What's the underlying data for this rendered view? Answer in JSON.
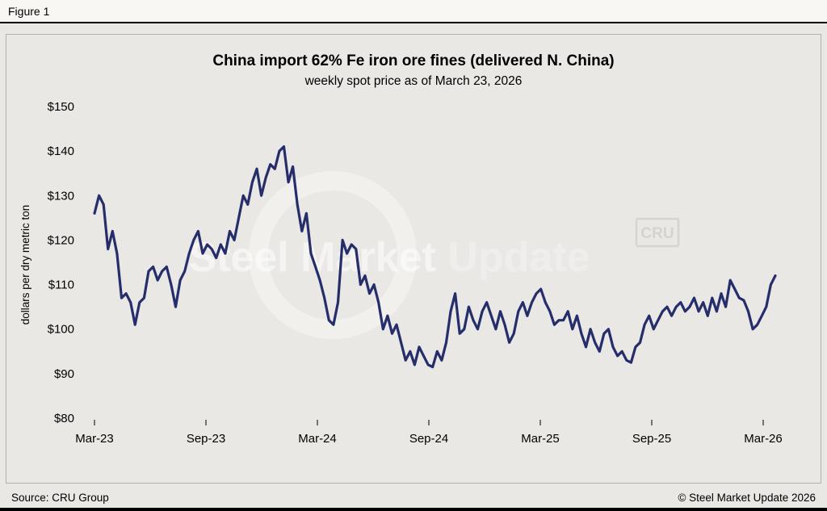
{
  "figure_label": "Figure 1",
  "chart_data": {
    "type": "line",
    "title": "China import 62% Fe iron ore fines (delivered N. China)",
    "subtitle": "weekly spot price as of March 23, 2026",
    "ylabel": "dollars per dry metric ton",
    "xlabel": "",
    "ylim": [
      80,
      150
    ],
    "grid": false,
    "legend": "none",
    "y_tick_values": [
      80,
      90,
      100,
      110,
      120,
      130,
      140,
      150
    ],
    "y_tick_labels": [
      "$80",
      "$90",
      "$100",
      "$110",
      "$120",
      "$130",
      "$140",
      "$150"
    ],
    "x_ticks": [
      "Mar-23",
      "Sep-23",
      "Mar-24",
      "Sep-24",
      "Mar-25",
      "Sep-25",
      "Mar-26"
    ],
    "x_unit": "weeks",
    "series": [
      {
        "name": "China import 62% Fe iron ore fines spot price",
        "color": "#262d6b",
        "values": [
          126,
          130,
          128,
          118,
          122,
          117,
          107,
          108,
          106,
          101,
          106,
          107,
          113,
          114,
          111,
          113,
          114,
          110,
          105,
          111,
          113,
          117,
          120,
          122,
          117,
          119,
          118,
          116,
          119,
          117,
          122,
          120,
          125,
          130,
          128,
          133,
          136,
          130,
          134,
          137,
          136,
          140,
          141,
          133,
          136.5,
          128,
          122,
          126,
          117,
          114,
          111,
          107,
          102,
          101,
          106,
          120,
          117,
          119,
          118,
          110,
          112,
          108,
          110,
          106,
          100,
          103,
          99,
          101,
          97,
          93,
          95,
          92,
          96,
          94,
          92,
          91.5,
          95,
          93,
          97,
          104,
          108,
          99,
          100,
          105,
          102,
          100,
          104,
          106,
          103,
          100,
          104,
          101,
          97,
          99,
          104,
          106,
          103,
          106,
          108,
          109,
          106,
          104,
          101,
          102,
          102,
          104,
          100,
          103,
          99,
          96,
          100,
          97,
          95,
          99,
          100,
          96,
          94,
          95,
          93,
          92.5,
          96,
          97,
          101,
          103,
          100,
          102,
          104,
          105,
          103,
          105,
          106,
          104,
          105,
          107,
          104,
          106,
          103,
          107,
          104,
          108,
          105,
          111,
          109,
          107,
          106.5,
          104,
          100,
          101,
          103,
          105,
          110,
          112
        ]
      }
    ]
  },
  "watermark": {
    "steel_market": "Steel Market",
    "update": " Update",
    "cru": "CRU"
  },
  "footer": {
    "source": "Source: CRU Group",
    "copyright": "© Steel Market Update 2026"
  },
  "colors": {
    "line": "#262d6b",
    "background": "#e9e8e5",
    "panel_border": "#b3b1ad",
    "tick": "#4a4a4a"
  }
}
